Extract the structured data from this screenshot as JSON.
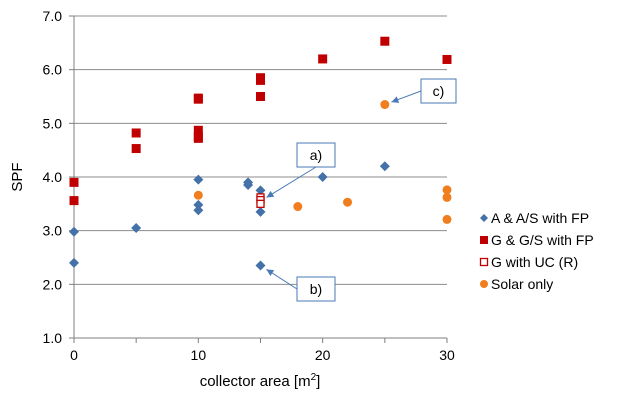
{
  "chart_data": {
    "type": "scatter",
    "xlabel": "collector area [m",
    "xlabel_sup": "2",
    "xlabel_end": "]",
    "ylabel": "SPF",
    "xlim": [
      0,
      30
    ],
    "ylim": [
      1.0,
      7.0
    ],
    "x_ticks": [
      "0",
      "10",
      "20",
      "30"
    ],
    "y_ticks": [
      "1.0",
      "2.0",
      "3.0",
      "4.0",
      "5.0",
      "6.0",
      "7.0"
    ],
    "grid": "horizontal",
    "legend_position": "right",
    "series": [
      {
        "name": "A & A/S with FP",
        "marker": "diamond",
        "color": "#4472a8",
        "points": [
          [
            0,
            2.4
          ],
          [
            0,
            2.98
          ],
          [
            5,
            3.05
          ],
          [
            10,
            3.95
          ],
          [
            10,
            3.48
          ],
          [
            10,
            3.38
          ],
          [
            14,
            3.9
          ],
          [
            14,
            3.85
          ],
          [
            15,
            3.75
          ],
          [
            15,
            3.35
          ],
          [
            15,
            2.35
          ],
          [
            20,
            4.0
          ],
          [
            25,
            4.2
          ]
        ]
      },
      {
        "name": "G & G/S with FP",
        "marker": "square",
        "color": "#c00000",
        "points": [
          [
            0,
            3.9
          ],
          [
            0,
            3.56
          ],
          [
            5,
            4.82
          ],
          [
            5,
            4.53
          ],
          [
            10,
            5.47
          ],
          [
            10,
            5.45
          ],
          [
            10,
            4.87
          ],
          [
            10,
            4.75
          ],
          [
            10,
            4.72
          ],
          [
            15,
            5.85
          ],
          [
            15,
            5.8
          ],
          [
            15,
            5.5
          ],
          [
            20,
            6.2
          ],
          [
            25,
            6.53
          ],
          [
            30,
            6.19
          ]
        ]
      },
      {
        "name": "G with UC (R)",
        "marker": "square-open",
        "color": "#c00000",
        "points": [
          [
            15,
            3.62
          ],
          [
            15,
            3.57
          ],
          [
            15,
            3.5
          ]
        ]
      },
      {
        "name": "Solar only",
        "marker": "circle",
        "color": "#f07d1e",
        "points": [
          [
            10,
            3.66
          ],
          [
            18,
            3.45
          ],
          [
            22,
            3.53
          ],
          [
            25,
            5.35
          ],
          [
            30,
            3.76
          ],
          [
            30,
            3.62
          ],
          [
            30,
            3.21
          ]
        ]
      }
    ],
    "annotations": [
      {
        "label": "a)",
        "target": [
          15,
          3.55
        ]
      },
      {
        "label": "b)",
        "target": [
          15,
          2.35
        ]
      },
      {
        "label": "c)",
        "target": [
          25,
          5.35
        ]
      }
    ]
  }
}
